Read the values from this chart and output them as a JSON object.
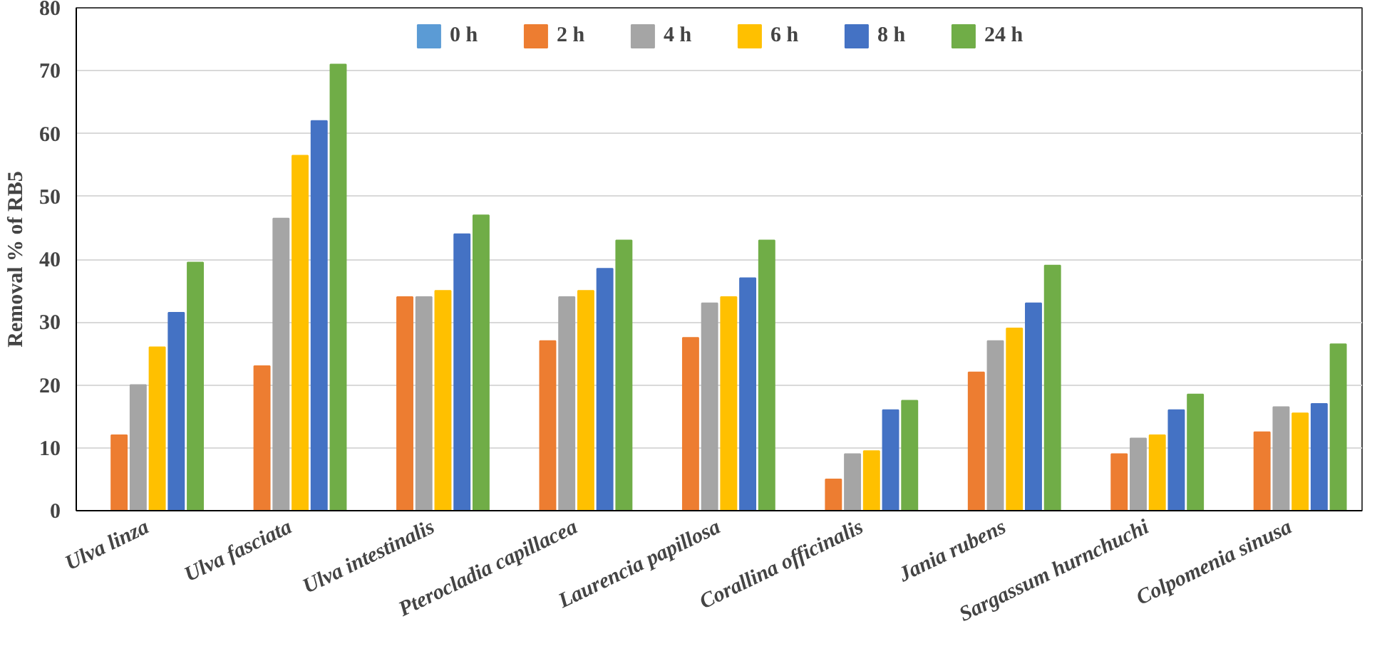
{
  "chart_data": {
    "type": "bar",
    "ylabel": "Removal % of RB5",
    "categories": [
      "Ulva linza",
      "Ulva fasciata",
      "Ulva intestinalis",
      "Pterocladia capillacea",
      "Laurencia papillosa",
      "Corallina officinalis",
      "Jania rubens",
      "Sargassum hurnchuchi",
      "Colpomenia sinusa"
    ],
    "series": [
      {
        "name": "0 h",
        "color": "#5b9bd5",
        "values": [
          0,
          0,
          0,
          0,
          0,
          0,
          0,
          0,
          0
        ]
      },
      {
        "name": "2 h",
        "color": "#ed7d31",
        "values": [
          12,
          23,
          34,
          27,
          27.5,
          5,
          22,
          9,
          12.5
        ]
      },
      {
        "name": "4 h",
        "color": "#a5a5a5",
        "values": [
          20,
          46.5,
          34,
          34,
          33,
          9,
          27,
          11.5,
          16.5
        ]
      },
      {
        "name": "6 h",
        "color": "#ffc000",
        "values": [
          26,
          56.5,
          35,
          35,
          34,
          9.5,
          29,
          12,
          15.5
        ]
      },
      {
        "name": "8 h",
        "color": "#4472c4",
        "values": [
          31.5,
          62,
          44,
          38.5,
          37,
          16,
          33,
          16,
          17
        ]
      },
      {
        "name": "24 h",
        "color": "#70ad47",
        "values": [
          39.5,
          71,
          47,
          43,
          43,
          17.5,
          39,
          18.5,
          26.5
        ]
      }
    ],
    "ylim": [
      0,
      80
    ],
    "yticks": [
      0,
      10,
      20,
      30,
      40,
      50,
      60,
      70,
      80
    ],
    "grid": "y",
    "legend": "top"
  }
}
